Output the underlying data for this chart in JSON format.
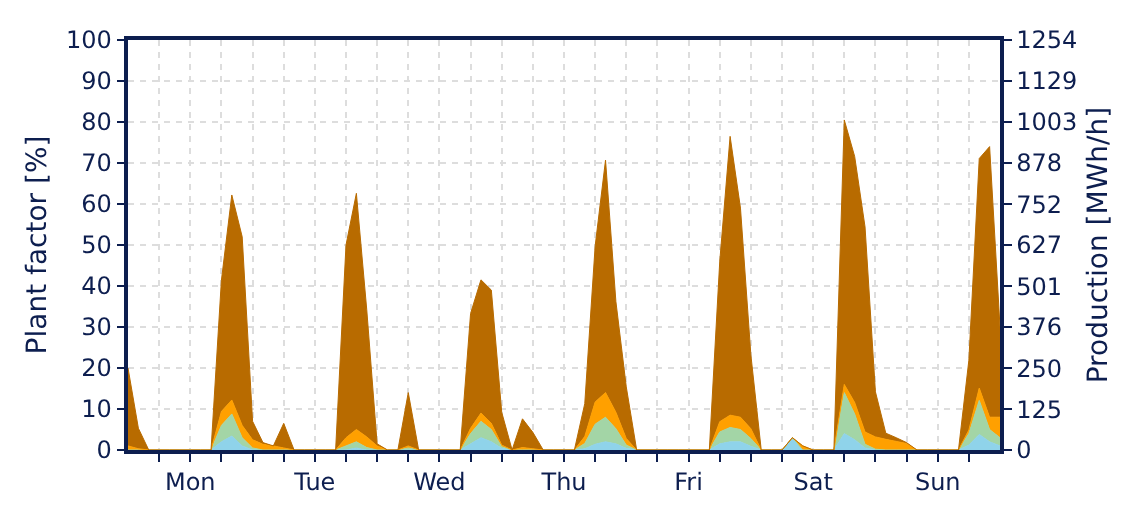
{
  "chart_data": {
    "type": "area",
    "stacked": true,
    "ylabel": "Plant factor [%]",
    "y2label": "Production [MWh/h]",
    "categories": [
      null,
      null,
      null,
      null,
      null,
      null,
      "Mon",
      null,
      null,
      null,
      null,
      null,
      null,
      null,
      null,
      null,
      null,
      null,
      "Tue",
      null,
      null,
      null,
      null,
      null,
      null,
      null,
      null,
      null,
      null,
      null,
      "Wed",
      null,
      null,
      null,
      null,
      null,
      null,
      null,
      null,
      null,
      null,
      null,
      "Thu",
      null,
      null,
      null,
      null,
      null,
      null,
      null,
      null,
      null,
      null,
      null,
      "Fri",
      null,
      null,
      null,
      null,
      null,
      null,
      null,
      null,
      null,
      null,
      null,
      "Sat",
      null,
      null,
      null,
      null,
      null,
      null,
      null,
      null,
      null,
      null,
      null,
      "Sun",
      null,
      null,
      null,
      null,
      null,
      null
    ],
    "series": [
      {
        "color": "#8fd3ea",
        "values": [
          0,
          0,
          0,
          0,
          0,
          0,
          0,
          0,
          0,
          2,
          3.4,
          1,
          0,
          0,
          0,
          0,
          0,
          0,
          0,
          0,
          0,
          0,
          0.5,
          0,
          0,
          0,
          0,
          0,
          0,
          0,
          0,
          0,
          0,
          1.5,
          3,
          2,
          0.4,
          0,
          0,
          0,
          0,
          0,
          0,
          0,
          0.3,
          1.4,
          2,
          1.5,
          0.4,
          0,
          0,
          0,
          0,
          0,
          0,
          0,
          0,
          1.5,
          2,
          2,
          0.9,
          0,
          0,
          0,
          3,
          0,
          0,
          0,
          0,
          4,
          2.5,
          0.5,
          0,
          0,
          0,
          0,
          0,
          0,
          0,
          0,
          0,
          1.2,
          3.8,
          2,
          1
        ]
      },
      {
        "color": "#a3d5a6",
        "values": [
          0,
          0,
          0,
          0,
          0,
          0,
          0,
          0,
          0,
          4,
          5.4,
          2,
          0.5,
          0,
          0,
          0,
          0,
          0,
          0,
          0,
          0,
          1,
          1.5,
          0.6,
          0,
          0,
          0,
          0.5,
          0,
          0,
          0,
          0,
          0,
          2.5,
          4,
          3,
          0.4,
          0,
          0,
          0,
          0,
          0,
          0,
          0,
          1.3,
          4.9,
          6,
          3.7,
          0.8,
          0,
          0,
          0,
          0,
          0,
          0,
          0,
          0,
          2.9,
          3.5,
          3,
          1.9,
          0,
          0,
          0,
          0,
          0,
          0,
          0,
          0,
          10,
          6.3,
          0.9,
          0.2,
          0,
          0,
          0,
          0,
          0,
          0,
          0,
          0,
          2.8,
          8.3,
          3,
          2
        ]
      },
      {
        "color": "#ffa000",
        "values": [
          1,
          0.3,
          0,
          0,
          0,
          0,
          0,
          0,
          0,
          3.4,
          3.4,
          3,
          2,
          1.4,
          1,
          0.5,
          0,
          0,
          0,
          0,
          0,
          2,
          3,
          2.6,
          1,
          0,
          0,
          0.5,
          0,
          0,
          0,
          0,
          0,
          1.3,
          2,
          1.5,
          0.4,
          0,
          0.6,
          0.3,
          0,
          0,
          0,
          0,
          1.7,
          5.4,
          6,
          4,
          1.6,
          0,
          0,
          0,
          0,
          0,
          0,
          0,
          0,
          2.5,
          3,
          3,
          2.4,
          0,
          0,
          0,
          0,
          1,
          0,
          0,
          0,
          2,
          2.8,
          3,
          3,
          2.6,
          2.1,
          1.6,
          0,
          0,
          0,
          0,
          0,
          0.9,
          3,
          3,
          5
        ]
      },
      {
        "color": "#b86b00",
        "values": [
          19,
          5,
          0,
          0,
          0,
          0,
          0,
          0,
          0,
          32,
          50,
          46,
          4.5,
          0.4,
          0,
          6,
          0,
          0,
          0,
          0,
          0,
          47,
          57.6,
          31,
          0.5,
          0,
          0,
          13,
          0,
          0,
          0,
          0,
          0,
          28,
          32.5,
          32.5,
          8,
          0,
          7,
          4,
          0,
          0,
          0,
          0,
          8,
          38,
          56.7,
          27,
          12.6,
          0,
          0,
          0,
          0,
          0,
          0,
          0,
          0,
          39,
          68,
          51,
          18,
          0,
          0,
          0,
          0,
          0,
          0,
          0,
          0,
          64.5,
          60,
          50,
          11,
          1.5,
          0.9,
          0.2,
          0,
          0,
          0,
          0,
          0,
          17,
          56,
          66,
          22
        ]
      }
    ],
    "ylim": [
      0,
      100
    ],
    "yticks": [
      0,
      10,
      20,
      30,
      40,
      50,
      60,
      70,
      80,
      90,
      100
    ],
    "y2lim": [
      0,
      1254
    ],
    "y2ticks": [
      0,
      125,
      250,
      376,
      501,
      627,
      752,
      878,
      1003,
      1129,
      1254
    ],
    "grid": true
  }
}
